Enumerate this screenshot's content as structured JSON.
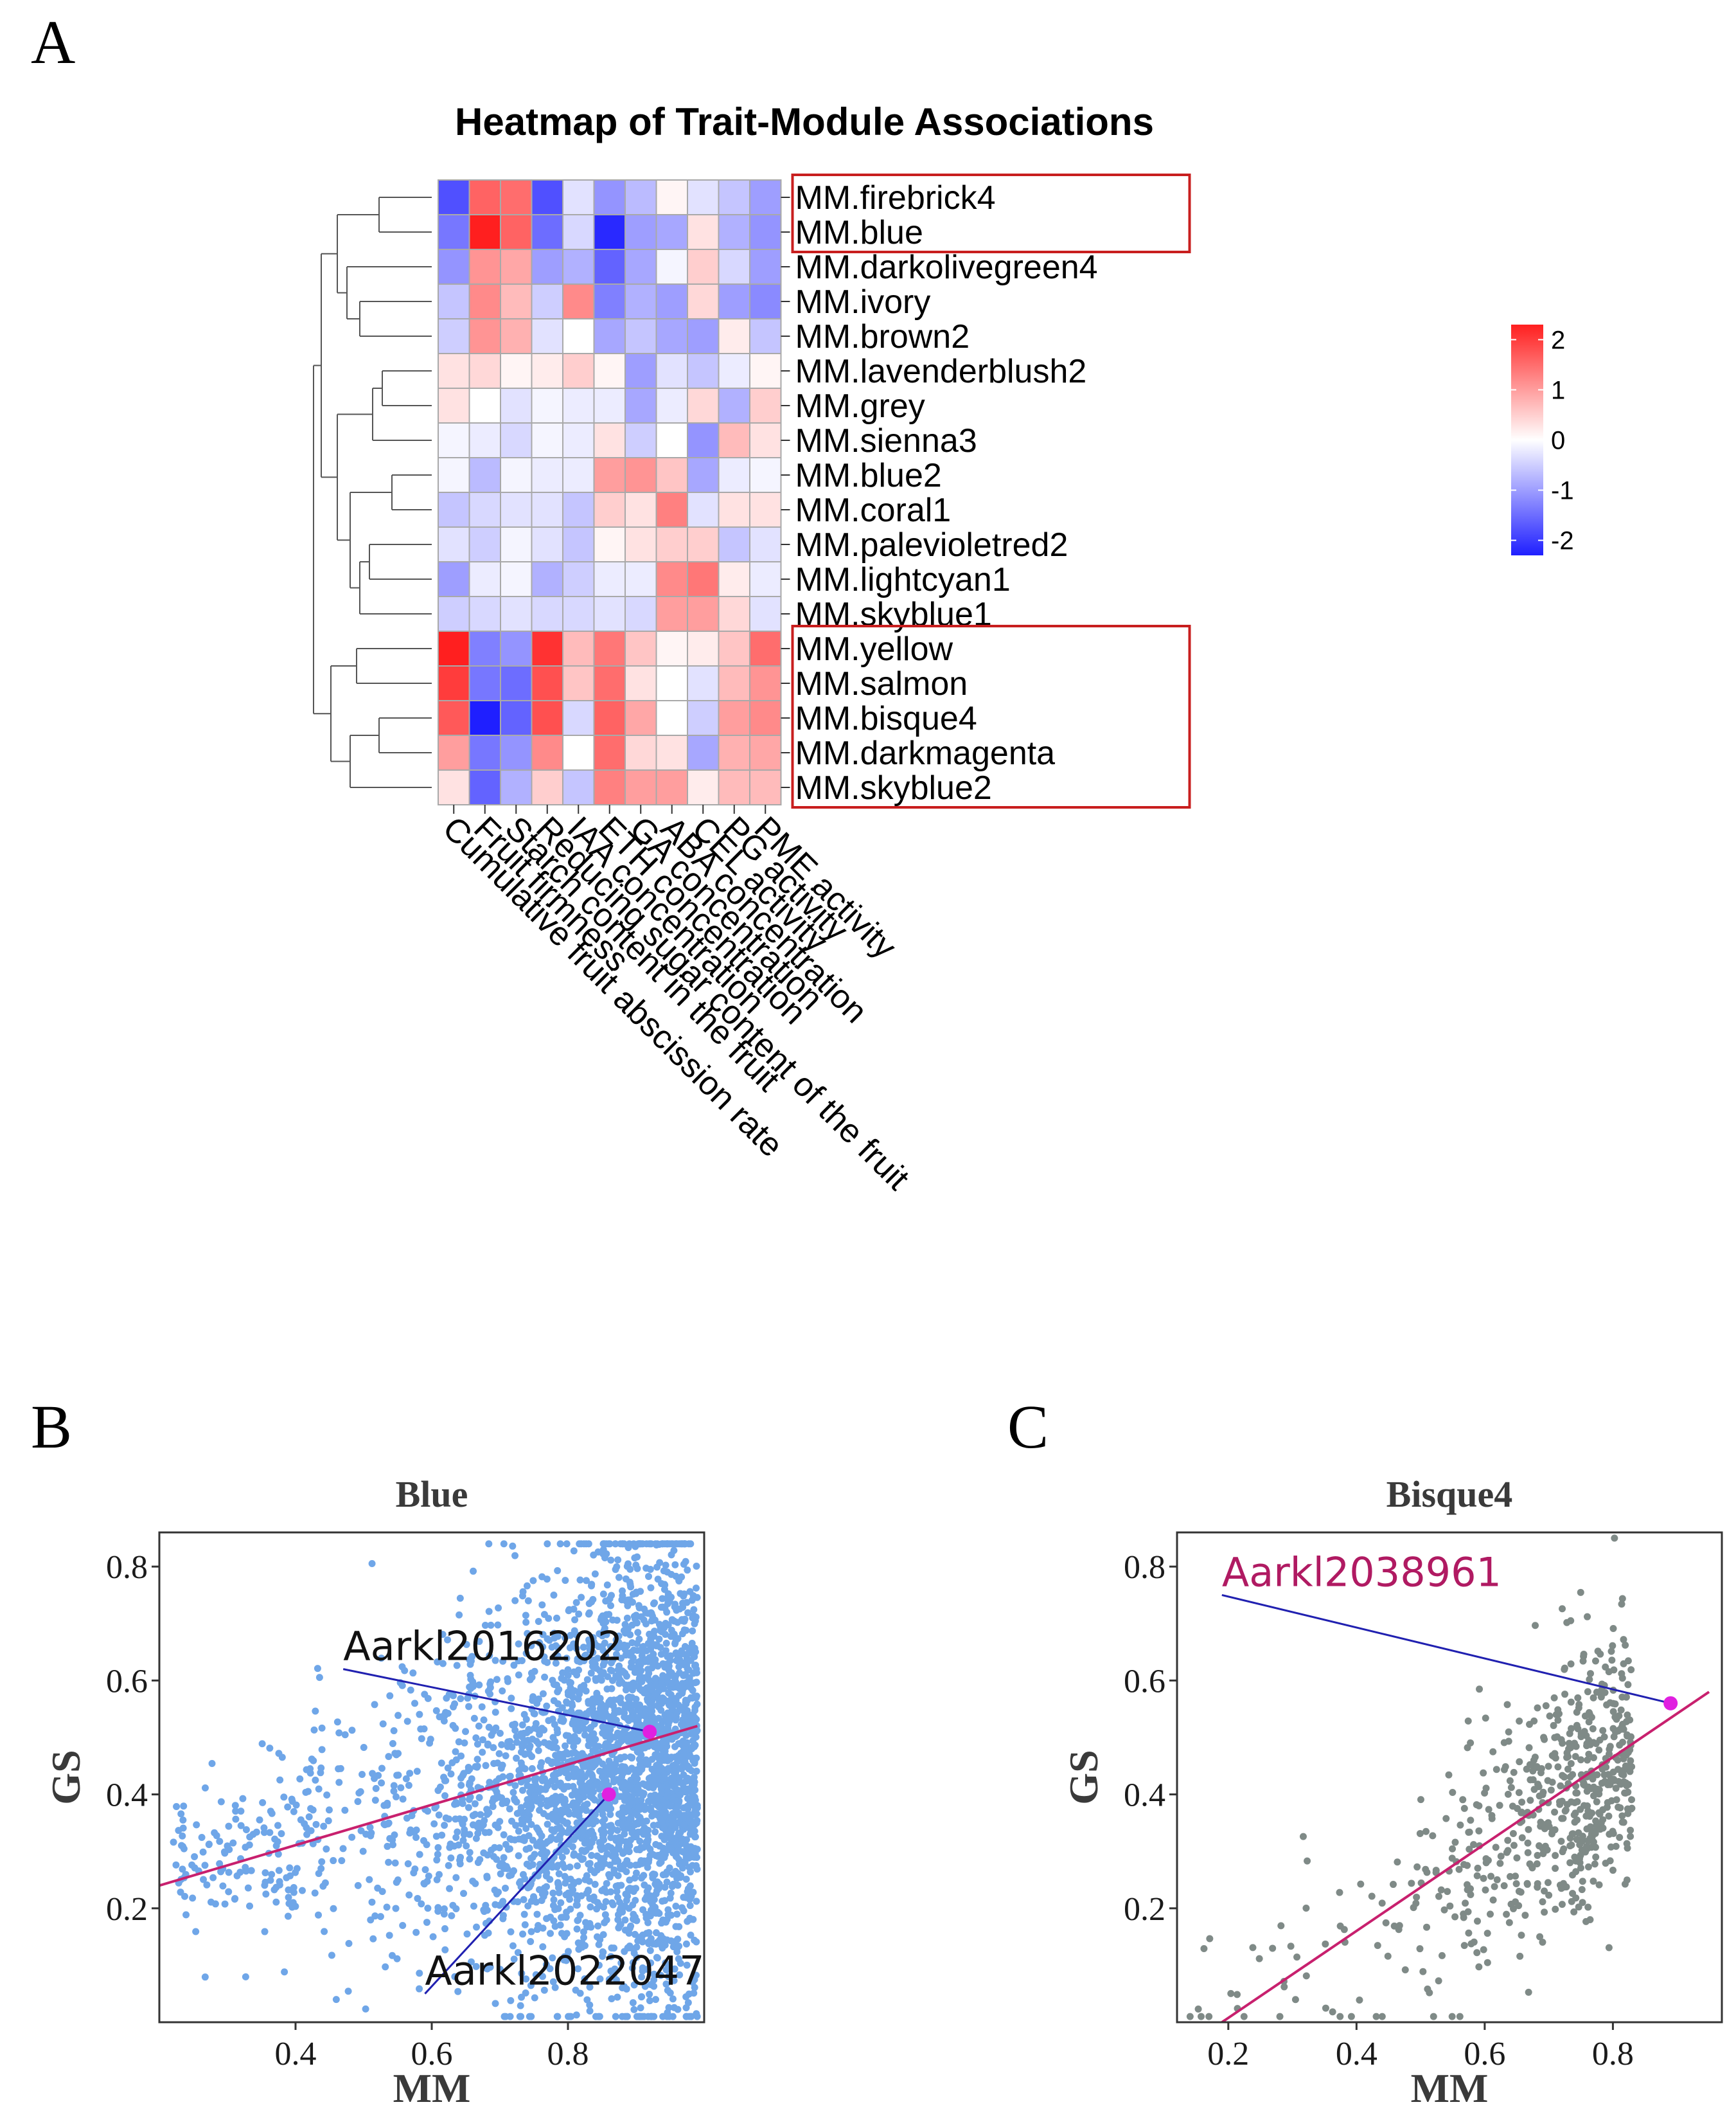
{
  "panels": {
    "a": "A",
    "b": "B",
    "c": "C"
  },
  "colors": {
    "blue_scatter": "#6fa6e8",
    "grey_scatter": "#7f8a87",
    "fit_line": "#c8206e",
    "leader_line": "#2020b0",
    "highlight_point": "#e020e0",
    "annot_c": "#b01a62",
    "highlight_box": "#c81e1e"
  },
  "chart_data": [
    {
      "type": "heatmap",
      "title": "Heatmap of Trait-Module Associations",
      "rows": [
        "MM.firebrick4",
        "MM.blue",
        "MM.darkolivegreen4",
        "MM.ivory",
        "MM.brown2",
        "MM.lavenderblush2",
        "MM.grey",
        "MM.sienna3",
        "MM.blue2",
        "MM.coral1",
        "MM.palevioletred2",
        "MM.lightcyan1",
        "MM.skyblue1",
        "MM.yellow",
        "MM.salmon",
        "MM.bisque4",
        "MM.darkmagenta",
        "MM.skyblue2"
      ],
      "columns": [
        "Cumulative fruit abscission rate",
        "Fruit firmness",
        "Starch content in the fruit",
        "Reducing sugar content of the fruit",
        "IAA concentration",
        "ETH concentration",
        "GA concentration",
        "ABA concentration",
        "CEL activity",
        "PG activity",
        "PME activity"
      ],
      "values": [
        [
          -1.8,
          1.6,
          1.5,
          -1.8,
          -0.3,
          -1.1,
          -0.7,
          0.1,
          -0.3,
          -0.6,
          -1.0
        ],
        [
          -1.4,
          2.3,
          1.6,
          -1.5,
          -0.4,
          -2.2,
          -1.0,
          -0.9,
          0.3,
          -0.8,
          -1.1
        ],
        [
          -1.1,
          1.1,
          0.9,
          -1.0,
          -0.8,
          -1.6,
          -0.9,
          -0.1,
          0.5,
          -0.4,
          -1.0
        ],
        [
          -0.6,
          1.2,
          0.7,
          -0.5,
          1.2,
          -1.3,
          -0.8,
          -1.0,
          0.4,
          -1.0,
          -1.2
        ],
        [
          -0.5,
          1.1,
          0.8,
          -0.3,
          0.0,
          -0.9,
          -0.6,
          -0.9,
          -1.0,
          0.2,
          -0.6
        ],
        [
          0.3,
          0.4,
          0.1,
          0.2,
          0.5,
          0.1,
          -1.0,
          -0.3,
          -0.6,
          -0.2,
          0.1
        ],
        [
          0.3,
          0.0,
          -0.3,
          -0.1,
          -0.2,
          -0.2,
          -0.9,
          -0.2,
          0.4,
          -0.8,
          0.5
        ],
        [
          -0.1,
          -0.2,
          -0.4,
          -0.1,
          -0.2,
          0.3,
          -0.5,
          0.0,
          -1.1,
          0.7,
          0.3
        ],
        [
          -0.1,
          -0.7,
          -0.1,
          -0.2,
          -0.2,
          1.0,
          1.1,
          0.6,
          -0.9,
          -0.2,
          -0.1
        ],
        [
          -0.6,
          -0.4,
          -0.3,
          -0.3,
          -0.6,
          0.5,
          0.3,
          1.3,
          -0.3,
          0.3,
          0.3
        ],
        [
          -0.3,
          -0.5,
          -0.1,
          -0.3,
          -0.6,
          0.1,
          0.3,
          0.5,
          0.5,
          -0.6,
          -0.3
        ],
        [
          -1.0,
          -0.2,
          -0.1,
          -0.8,
          -0.5,
          -0.2,
          -0.2,
          1.2,
          1.4,
          0.2,
          -0.2
        ],
        [
          -0.5,
          -0.4,
          -0.3,
          -0.4,
          -0.4,
          -0.3,
          -0.4,
          1.0,
          1.0,
          0.4,
          -0.3
        ],
        [
          2.4,
          -1.3,
          -1.1,
          2.1,
          0.7,
          1.4,
          0.6,
          0.1,
          0.2,
          0.6,
          1.5
        ],
        [
          2.0,
          -1.4,
          -1.5,
          1.8,
          0.6,
          1.5,
          0.3,
          0.0,
          -0.3,
          0.7,
          1.1
        ],
        [
          1.7,
          -2.3,
          -1.6,
          1.8,
          -0.4,
          1.6,
          0.9,
          0.0,
          -0.5,
          1.0,
          1.2
        ],
        [
          1.0,
          -1.4,
          -1.1,
          1.2,
          0.0,
          1.5,
          0.4,
          0.3,
          -0.9,
          0.8,
          0.9
        ],
        [
          0.3,
          -1.6,
          -0.8,
          0.5,
          -0.6,
          1.3,
          1.0,
          1.0,
          0.2,
          0.7,
          0.7
        ]
      ],
      "color_scale": {
        "ticks": [
          2,
          1,
          0,
          -1,
          -2
        ],
        "tick_labels": [
          "2",
          "1",
          "0",
          "-1",
          "-2"
        ],
        "min": -2.3,
        "max": 2.3,
        "low_color": "#1f1fff",
        "mid_color": "#ffffff",
        "high_color": "#ff1f1f"
      },
      "highlighted_row_groups": [
        [
          "MM.firebrick4",
          "MM.blue"
        ],
        [
          "MM.yellow",
          "MM.salmon",
          "MM.bisque4",
          "MM.darkmagenta",
          "MM.skyblue2"
        ]
      ],
      "row_dendrogram": true
    },
    {
      "type": "scatter",
      "panel": "B",
      "title": "Blue",
      "xlabel": "MM",
      "ylabel": "GS",
      "xlim": [
        0.2,
        1.0
      ],
      "ylim": [
        0.0,
        0.86
      ],
      "xticks": [
        0.4,
        0.6,
        0.8
      ],
      "xtick_labels": [
        "0.4",
        "0.6",
        "0.8"
      ],
      "yticks": [
        0.2,
        0.4,
        0.6,
        0.8
      ],
      "ytick_labels": [
        "0.2",
        "0.4",
        "0.6",
        "0.8"
      ],
      "n_points": 3200,
      "cloud": {
        "mm_min": 0.22,
        "mm_max": 0.99,
        "gs_min": 0.01,
        "gs_max": 0.84
      },
      "fit_line": {
        "x": [
          0.2,
          0.99
        ],
        "y": [
          0.24,
          0.52
        ]
      },
      "highlights": [
        {
          "label": "Aarkl2016202",
          "mm": 0.92,
          "gs": 0.51,
          "text_x": 0.47,
          "text_y": 0.62
        },
        {
          "label": "Aarkl2022047",
          "mm": 0.86,
          "gs": 0.4,
          "text_x": 0.59,
          "text_y": 0.05
        }
      ]
    },
    {
      "type": "scatter",
      "panel": "C",
      "title": "Bisque4",
      "xlabel": "MM",
      "ylabel": "GS",
      "xlim": [
        0.12,
        0.97
      ],
      "ylim": [
        0.0,
        0.86
      ],
      "xticks": [
        0.2,
        0.4,
        0.6,
        0.8
      ],
      "xtick_labels": [
        "0.2",
        "0.4",
        "0.6",
        "0.8"
      ],
      "yticks": [
        0.2,
        0.4,
        0.6,
        0.8
      ],
      "ytick_labels": [
        "0.2",
        "0.4",
        "0.6",
        "0.8"
      ],
      "n_points": 620,
      "cloud": {
        "mm_min": 0.14,
        "mm_max": 0.95,
        "gs_min": 0.01,
        "gs_max": 0.85
      },
      "fit_line": {
        "x": [
          0.19,
          0.95
        ],
        "y": [
          0.0,
          0.58
        ]
      },
      "highlights": [
        {
          "label": "Aarkl2038961",
          "mm": 0.89,
          "gs": 0.56,
          "text_x": 0.19,
          "text_y": 0.75
        }
      ]
    }
  ]
}
